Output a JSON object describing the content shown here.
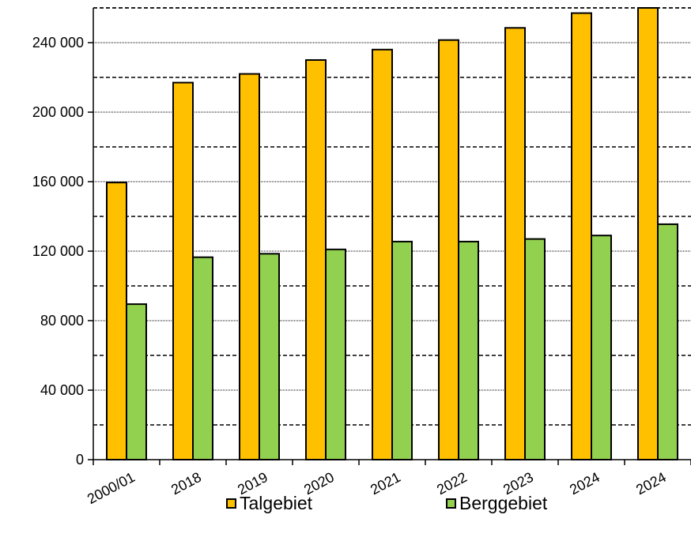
{
  "chart_data": {
    "type": "bar",
    "categories": [
      "2000/01",
      "2018",
      "2019",
      "2020",
      "2021",
      "2022",
      "2023",
      "2024",
      "2024"
    ],
    "series": [
      {
        "name": "Talgebiet",
        "color": "#FFC000",
        "values": [
          159500,
          217000,
          222000,
          230000,
          236000,
          241500,
          248500,
          257000,
          262000
        ]
      },
      {
        "name": "Berggebiet",
        "color": "#92D050",
        "values": [
          89500,
          116500,
          118500,
          121000,
          125500,
          125500,
          127000,
          129000,
          135500
        ]
      }
    ],
    "y_ticks": [
      "0",
      "40 000",
      "80 000",
      "120 000",
      "160 000",
      "200 000",
      "240 000"
    ],
    "ylim": [
      0,
      260000
    ],
    "grid": "major dotted, minor dashed",
    "legend_position": "bottom"
  }
}
